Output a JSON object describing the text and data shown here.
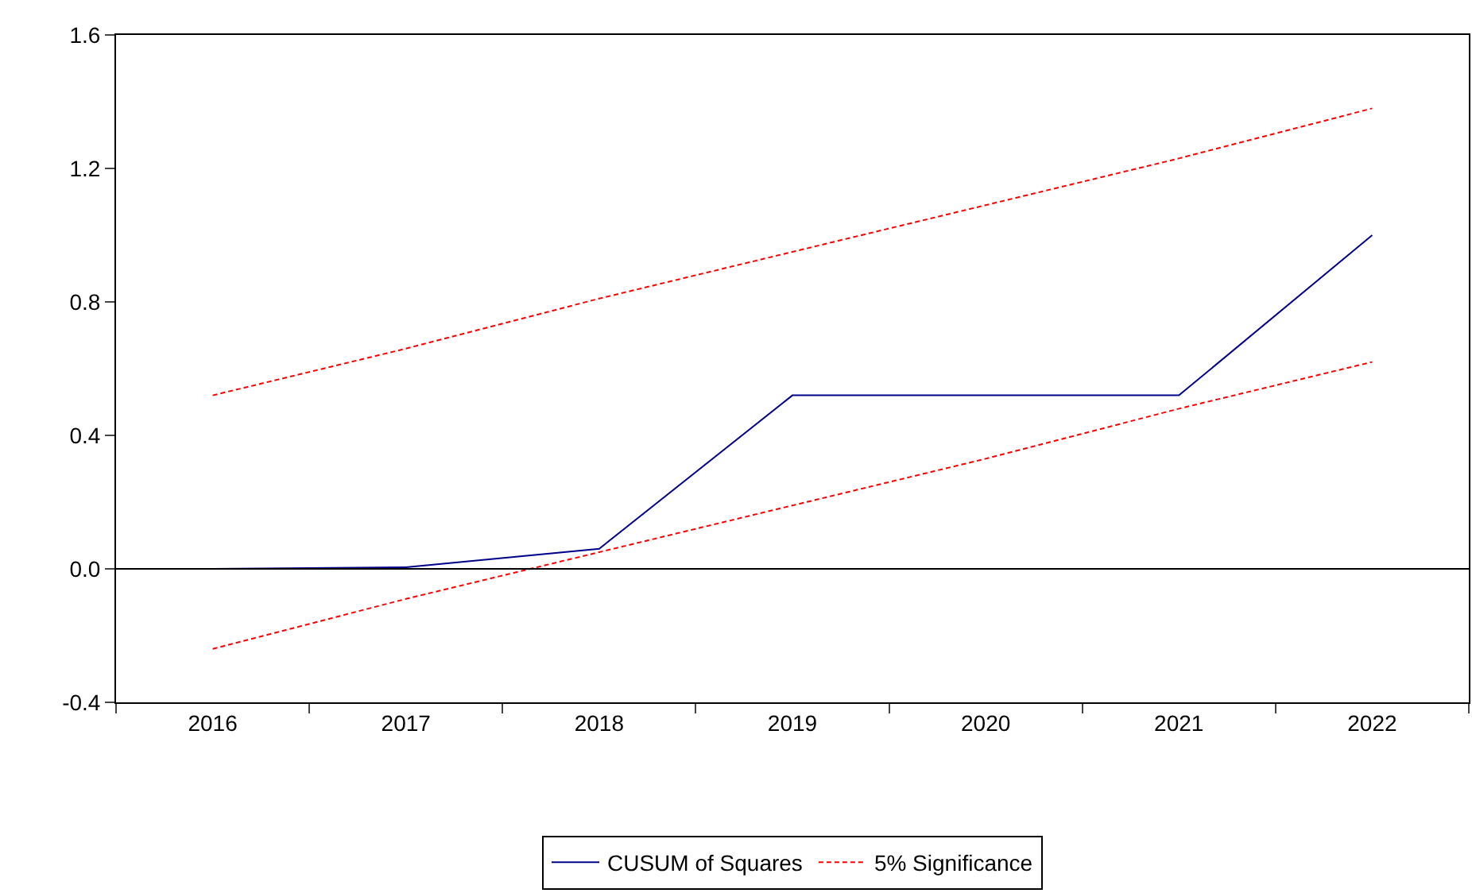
{
  "chart_data": {
    "type": "line",
    "categories": [
      "2016",
      "2017",
      "2018",
      "2019",
      "2020",
      "2021",
      "2022"
    ],
    "series": [
      {
        "name": "CUSUM of Squares",
        "color": "#00008b",
        "values": [
          0.0,
          0.005,
          0.06,
          0.52,
          0.52,
          0.52,
          1.0
        ],
        "line_style": "solid"
      },
      {
        "name": "5% Significance",
        "color": "#ff0000",
        "values": [
          0.52,
          0.66,
          0.81,
          0.95,
          1.09,
          1.23,
          1.38
        ],
        "line_style": "dashed"
      },
      {
        "color": "#ff0000",
        "values": [
          -0.24,
          -0.09,
          0.05,
          0.19,
          0.33,
          0.48,
          0.62
        ],
        "line_style": "dashed"
      }
    ],
    "ylim": [
      -0.4,
      1.6
    ],
    "yticks": [
      -0.4,
      {
        "value": 0,
        "label": "0.0"
      },
      0.4,
      0.8,
      1.2,
      1.6
    ],
    "ref_lines": [
      {
        "axis": "y",
        "value": 0,
        "color": "#000000"
      }
    ],
    "legend": "bottom",
    "marker": "none"
  }
}
